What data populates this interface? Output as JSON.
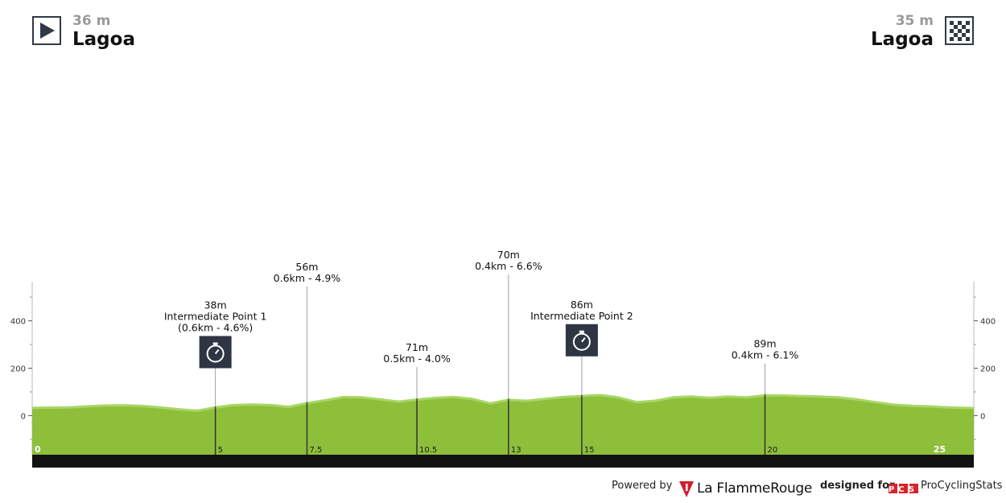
{
  "start": {
    "altitude": "36 m",
    "name": "Lagoa",
    "icon": "play-icon"
  },
  "finish": {
    "altitude": "35 m",
    "name": "Lagoa",
    "icon": "checkered-flag-icon"
  },
  "chart_data": {
    "type": "area",
    "xlabel": "",
    "ylabel": "",
    "xlim": [
      0,
      25.7
    ],
    "ylim": [
      -165,
      565
    ],
    "y_ticks": [
      0,
      200,
      400
    ],
    "y_minor_ticks": [
      -100,
      100,
      300,
      500
    ],
    "x_ticks": [
      {
        "x": 0,
        "label": "0"
      },
      {
        "x": 5,
        "label": "5"
      },
      {
        "x": 7.5,
        "label": "7.5"
      },
      {
        "x": 10.5,
        "label": "10.5"
      },
      {
        "x": 13,
        "label": "13"
      },
      {
        "x": 15,
        "label": "15"
      },
      {
        "x": 20,
        "label": "20"
      },
      {
        "x": 25,
        "label": "25"
      }
    ],
    "series": [
      {
        "x": [
          0,
          0.5,
          1,
          1.5,
          2,
          2.5,
          3,
          3.5,
          4,
          4.5,
          5,
          5.5,
          6,
          6.5,
          7,
          7.5,
          8,
          8.5,
          9,
          9.5,
          10,
          10.5,
          11,
          11.5,
          12,
          12.5,
          13,
          13.5,
          14,
          14.5,
          15,
          15.5,
          16,
          16.5,
          17,
          17.5,
          18,
          18.5,
          19,
          19.5,
          20,
          20.5,
          21,
          21.5,
          22,
          22.5,
          23,
          23.5,
          24,
          24.5,
          25,
          25.7
        ],
        "y": [
          36,
          37,
          38,
          42,
          46,
          47,
          44,
          38,
          30,
          24,
          38,
          48,
          50,
          48,
          40,
          56,
          68,
          82,
          80,
          72,
          62,
          71,
          78,
          82,
          74,
          55,
          70,
          66,
          74,
          82,
          86,
          90,
          80,
          60,
          66,
          80,
          84,
          78,
          84,
          80,
          89,
          88,
          86,
          84,
          80,
          72,
          60,
          50,
          45,
          42,
          38,
          35
        ]
      }
    ],
    "markers": [
      {
        "x": 5,
        "line_top": 200,
        "lines": [
          "38m",
          "Intermediate Point 1",
          "(0.6km - 4.6%)"
        ],
        "type": "sprint",
        "icon": "stopwatch-icon"
      },
      {
        "x": 7.5,
        "line_top": 545,
        "lines": [
          "56m",
          "0.6km - 4.9%"
        ],
        "type": "climb"
      },
      {
        "x": 10.5,
        "line_top": 205,
        "lines": [
          "71m",
          "0.5km - 4.0%"
        ],
        "type": "climb"
      },
      {
        "x": 13,
        "line_top": 595,
        "lines": [
          "70m",
          "0.4km - 6.6%"
        ],
        "type": "climb"
      },
      {
        "x": 15,
        "line_top": 250,
        "lines": [
          "86m",
          "Intermediate Point 2"
        ],
        "type": "sprint",
        "icon": "stopwatch-icon"
      },
      {
        "x": 20,
        "line_top": 220,
        "lines": [
          "89m",
          "0.4km - 6.1%"
        ],
        "type": "climb"
      }
    ],
    "colors": {
      "profile": "#8dbf3b",
      "profile_light": "#a9d765",
      "base": "#121212",
      "axis": "#555555",
      "marker_line": "#333333",
      "icon_bg": "#2e3644"
    }
  },
  "footer": {
    "powered_by": "Powered by",
    "la_flamme_rouge": "La FlammeRouge",
    "designed_for": "designed for",
    "procyclingstats": "ProCyclingStats",
    "pcs_badge": "PCS"
  }
}
